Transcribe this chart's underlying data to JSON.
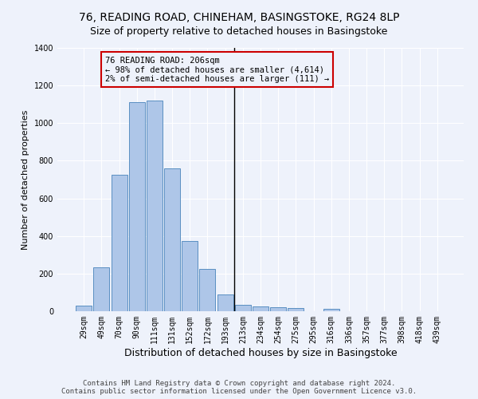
{
  "title": "76, READING ROAD, CHINEHAM, BASINGSTOKE, RG24 8LP",
  "subtitle": "Size of property relative to detached houses in Basingstoke",
  "xlabel": "Distribution of detached houses by size in Basingstoke",
  "ylabel": "Number of detached properties",
  "categories": [
    "29sqm",
    "49sqm",
    "70sqm",
    "90sqm",
    "111sqm",
    "131sqm",
    "152sqm",
    "172sqm",
    "193sqm",
    "213sqm",
    "234sqm",
    "254sqm",
    "275sqm",
    "295sqm",
    "316sqm",
    "336sqm",
    "357sqm",
    "377sqm",
    "398sqm",
    "418sqm",
    "439sqm"
  ],
  "values": [
    30,
    235,
    725,
    1110,
    1120,
    760,
    375,
    225,
    90,
    32,
    27,
    22,
    15,
    0,
    12,
    0,
    0,
    0,
    0,
    0,
    0
  ],
  "bar_color": "#aec6e8",
  "bar_edge_color": "#5a8fc2",
  "vline_color": "#000000",
  "annotation_text": "76 READING ROAD: 206sqm\n← 98% of detached houses are smaller (4,614)\n2% of semi-detached houses are larger (111) →",
  "annotation_box_color": "#cc0000",
  "annotation_text_color": "#000000",
  "ylim": [
    0,
    1400
  ],
  "yticks": [
    0,
    200,
    400,
    600,
    800,
    1000,
    1200,
    1400
  ],
  "background_color": "#eef2fb",
  "grid_color": "#ffffff",
  "footer_line1": "Contains HM Land Registry data © Crown copyright and database right 2024.",
  "footer_line2": "Contains public sector information licensed under the Open Government Licence v3.0.",
  "title_fontsize": 10,
  "subtitle_fontsize": 9,
  "xlabel_fontsize": 9,
  "ylabel_fontsize": 8,
  "tick_fontsize": 7,
  "annotation_fontsize": 7.5,
  "footer_fontsize": 6.5
}
